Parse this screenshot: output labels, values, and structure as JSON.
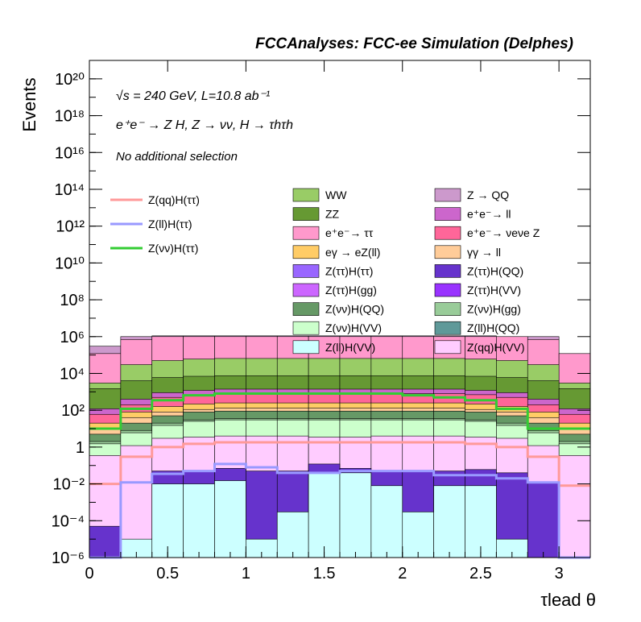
{
  "chart_data": {
    "type": "bar",
    "title": "FCCAnalyses: FCC-ee Simulation (Delphes)",
    "annotations": [
      "√s = 240 GeV, L=10.8 ab⁻¹",
      "e⁺e⁻ → Z H, Z → νν, H → τhτh",
      "No additional selection"
    ],
    "xlabel": "τlead θ",
    "ylabel": "Events",
    "xlim": [
      0,
      3.2
    ],
    "ylim": [
      1e-06,
      1e+21
    ],
    "log_y": true,
    "grid": false,
    "legend_position": "top",
    "x_ticks": [
      "0",
      "0.5",
      "1",
      "1.5",
      "2",
      "2.5",
      "3"
    ],
    "y_ticks": [
      "10⁻⁶",
      "10⁻⁴",
      "10⁻²",
      "1",
      "10²",
      "10⁴",
      "10⁶",
      "10⁸",
      "10¹⁰",
      "10¹²",
      "10¹⁴",
      "10¹⁶",
      "10¹⁸",
      "10²⁰"
    ],
    "bin_edges": [
      0,
      0.2,
      0.4,
      0.6,
      0.8,
      1.0,
      1.2,
      1.4,
      1.6,
      1.8,
      2.0,
      2.2,
      2.4,
      2.6,
      2.8,
      3.0,
      3.2
    ],
    "stacked_background": {
      "note": "cumulative stack top per bin, bottom to top order",
      "layers": [
        {
          "name": "Z(qq)H(VV)",
          "color": "#ffccff",
          "top": [
            0.35,
            1.2,
            3,
            3.5,
            4,
            4,
            4,
            3.5,
            3.5,
            4,
            4,
            4,
            3.5,
            3,
            1.2,
            0.35
          ]
        },
        {
          "name": "Z(ll)H(QQ)",
          "color": "#5f9999",
          "top": [
            0.0002,
            0.15,
            0.2,
            0.2,
            0.2,
            0.2,
            0.2,
            0.2,
            0.2,
            0.2,
            0.2,
            0.2,
            0.2,
            0.2,
            0.15,
            0.0002
          ]
        },
        {
          "name": "Z(νν)H(VV)",
          "color": "#ccffcc",
          "top": [
            1.5,
            6,
            15,
            25,
            30,
            30,
            30,
            30,
            30,
            30,
            30,
            30,
            25,
            15,
            6,
            1.5
          ]
        },
        {
          "name": "Z(νν)H(gg)",
          "color": "#99cc99",
          "top": [
            2,
            8,
            20,
            30,
            35,
            35,
            35,
            35,
            35,
            35,
            35,
            35,
            30,
            20,
            8,
            2
          ]
        },
        {
          "name": "Z(νν)H(QQ)",
          "color": "#669966",
          "top": [
            5,
            20,
            50,
            80,
            90,
            90,
            90,
            90,
            90,
            90,
            90,
            90,
            80,
            50,
            20,
            5
          ]
        },
        {
          "name": "γγ → ll",
          "color": "#ffcc99",
          "top": [
            10,
            40,
            80,
            110,
            130,
            130,
            130,
            130,
            130,
            130,
            130,
            130,
            110,
            80,
            40,
            10
          ]
        },
        {
          "name": "eγ → eZ(ll)",
          "color": "#ffcc66",
          "top": [
            20,
            80,
            160,
            220,
            250,
            250,
            250,
            250,
            250,
            250,
            250,
            250,
            220,
            160,
            80,
            20
          ]
        },
        {
          "name": "e⁺e⁻ → νeνe Z",
          "color": "#ff6699",
          "top": [
            60,
            200,
            500,
            700,
            800,
            800,
            800,
            800,
            800,
            800,
            800,
            800,
            700,
            500,
            200,
            60
          ]
        },
        {
          "name": "e⁺e⁻ → ll",
          "color": "#cc66cc",
          "top": [
            120,
            400,
            900,
            1200,
            1400,
            1400,
            1400,
            1400,
            1400,
            1400,
            1400,
            1400,
            1200,
            900,
            400,
            120
          ]
        },
        {
          "name": "ZZ",
          "color": "#669933",
          "top": [
            1500,
            4000,
            6000,
            7000,
            7500,
            7500,
            7500,
            7500,
            7500,
            7500,
            7500,
            7500,
            7000,
            6000,
            4000,
            1500
          ]
        },
        {
          "name": "WW",
          "color": "#99cc66",
          "top": [
            3000,
            30000,
            50000,
            60000,
            65000,
            65000,
            65000,
            65000,
            65000,
            65000,
            65000,
            65000,
            60000,
            50000,
            30000,
            3000
          ]
        },
        {
          "name": "e⁺e⁻ → ττ",
          "color": "#ff99cc",
          "top": [
            120000,
            700000,
            1000000,
            1000000,
            1000000,
            1000000,
            1000000,
            1000000,
            1000000,
            1000000,
            1000000,
            1000000,
            1000000,
            1000000,
            700000,
            120000
          ]
        },
        {
          "name": "Z → QQ",
          "color": "#cc99cc",
          "top": [
            300000,
            1000000,
            1100000,
            1100000,
            1100000,
            1100000,
            1100000,
            1100000,
            1100000,
            1100000,
            1100000,
            1100000,
            1100000,
            1000000,
            1000000,
            20000
          ]
        }
      ]
    },
    "signal_lines": [
      {
        "name": "Z(qq)H(ττ)",
        "color": "#ff9999",
        "values": [
          0.01,
          0.3,
          1,
          1.5,
          1.8,
          1.8,
          1.8,
          1.8,
          1.8,
          1.8,
          1.8,
          1.8,
          1.5,
          1,
          0.3,
          0.008
        ]
      },
      {
        "name": "Z(ll)H(ττ)",
        "color": "#9999ff",
        "values": [
          1e-06,
          0.012,
          0.035,
          0.05,
          0.12,
          0.08,
          0.04,
          0.04,
          0.05,
          0.05,
          0.05,
          0.03,
          0.03,
          0.02,
          0.012,
          1e-06
        ]
      },
      {
        "name": "Z(νν)H(ττ)",
        "color": "#33cc33",
        "values": [
          10,
          120,
          350,
          650,
          800,
          800,
          800,
          800,
          800,
          800,
          650,
          500,
          350,
          120,
          10,
          10
        ]
      }
    ],
    "low_layers": [
      {
        "name": "Z(ll)H(VV)",
        "color": "#ccffff",
        "values": [
          1e-06,
          1e-05,
          0.01,
          0.01,
          0.015,
          1e-05,
          0.0003,
          0.04,
          0.04,
          0.008,
          0.0003,
          0.008,
          0.008,
          1e-05,
          1e-07,
          1e-06
        ]
      },
      {
        "name": "Z(ττ)H(QQ)",
        "color": "#6633cc",
        "values": [
          5e-05,
          5e-07,
          0.05,
          0.05,
          0.07,
          0.05,
          0.05,
          0.12,
          0.07,
          0.05,
          0.05,
          0.05,
          0.06,
          0.04,
          0.012,
          1e-06
        ]
      }
    ],
    "legend_left": [
      "Z(qq)H(ττ)",
      "Z(ll)H(ττ)",
      "Z(νν)H(ττ)"
    ],
    "legend_right": [
      [
        "WW",
        "Z → QQ"
      ],
      [
        "ZZ",
        "e⁺e⁻→ ll"
      ],
      [
        "e⁺e⁻→ ττ",
        "e⁺e⁻→ νeνe Z"
      ],
      [
        "eγ → eZ(ll)",
        "γγ → ll"
      ],
      [
        "Z(ττ)H(ττ)",
        "Z(ττ)H(QQ)"
      ],
      [
        "Z(ττ)H(gg)",
        "Z(ττ)H(VV)"
      ],
      [
        "Z(νν)H(QQ)",
        "Z(νν)H(gg)"
      ],
      [
        "Z(νν)H(VV)",
        "Z(ll)H(QQ)"
      ],
      [
        "Z(ll)H(VV)",
        "Z(qq)H(VV)"
      ]
    ],
    "legend_colors": {
      "WW": "#99cc66",
      "Z → QQ": "#cc99cc",
      "ZZ": "#669933",
      "e⁺e⁻→ ll": "#cc66cc",
      "e⁺e⁻→ ττ": "#ff99cc",
      "e⁺e⁻→ νeνe Z": "#ff6699",
      "eγ → eZ(ll)": "#ffcc66",
      "γγ → ll": "#ffcc99",
      "Z(ττ)H(ττ)": "#9966ff",
      "Z(ττ)H(QQ)": "#6633cc",
      "Z(ττ)H(gg)": "#cc66ff",
      "Z(ττ)H(VV)": "#9933ff",
      "Z(νν)H(QQ)": "#669966",
      "Z(νν)H(gg)": "#99cc99",
      "Z(νν)H(VV)": "#ccffcc",
      "Z(ll)H(QQ)": "#5f9999",
      "Z(ll)H(VV)": "#ccffff",
      "Z(qq)H(VV)": "#ffccff"
    }
  }
}
